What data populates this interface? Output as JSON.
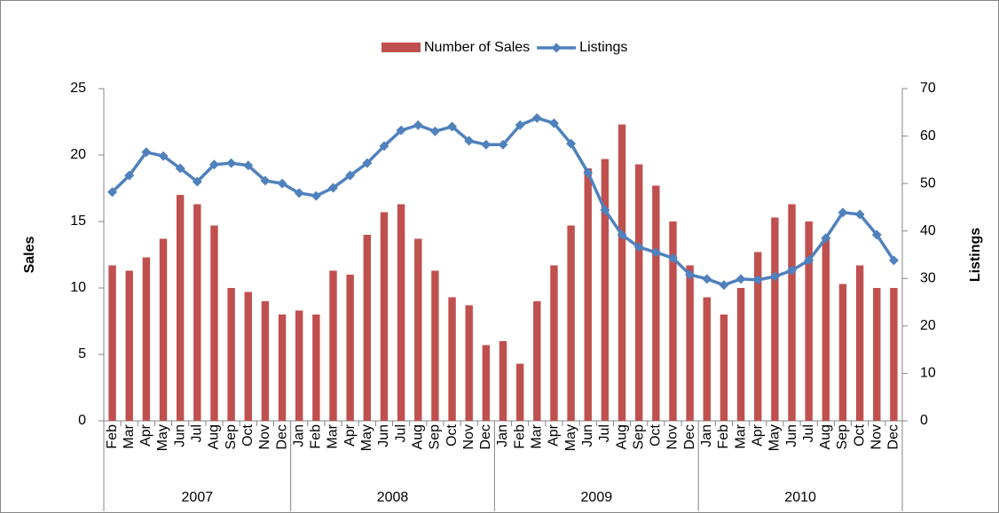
{
  "chart_data": {
    "type": "bar-line",
    "groups": [
      {
        "label": "2007",
        "categories": [
          "Feb",
          "Mar",
          "Apr",
          "May",
          "Jun",
          "Jul",
          "Aug",
          "Sep",
          "Oct",
          "Nov",
          "Dec"
        ]
      },
      {
        "label": "2008",
        "categories": [
          "Jan",
          "Feb",
          "Mar",
          "Apr",
          "May",
          "Jun",
          "Jul",
          "Aug",
          "Sep",
          "Oct",
          "Nov",
          "Dec"
        ]
      },
      {
        "label": "2009",
        "categories": [
          "Jan",
          "Feb",
          "Mar",
          "Apr",
          "May",
          "Jun",
          "Jul",
          "Aug",
          "Sep",
          "Oct",
          "Nov",
          "Dec"
        ]
      },
      {
        "label": "2010",
        "categories": [
          "Jan",
          "Feb",
          "Mar",
          "Apr",
          "May",
          "Jun",
          "Jul",
          "Aug",
          "Sep",
          "Oct",
          "Nov",
          "Dec"
        ]
      }
    ],
    "series": [
      {
        "name": "Number of Sales",
        "type": "bar",
        "color": "#c0504d",
        "axis": "y",
        "values": [
          11.7,
          11.3,
          12.3,
          13.7,
          17,
          16.3,
          14.7,
          10,
          9.7,
          9,
          8,
          8.3,
          8,
          11.3,
          11,
          14,
          15.7,
          16.3,
          13.7,
          11.3,
          9.3,
          8.7,
          5.7,
          6,
          4.3,
          9,
          11.7,
          14.7,
          19,
          19.7,
          22.3,
          19.3,
          17.7,
          15,
          11.7,
          9.3,
          8,
          10,
          12.7,
          15.3,
          16.3,
          15,
          13.7,
          10.3,
          11.7,
          10,
          10
        ]
      },
      {
        "name": "Listings",
        "type": "line",
        "color": "#4f81bd",
        "axis": "y2",
        "values": [
          48.2,
          51.7,
          56.6,
          55.8,
          53.2,
          50.4,
          54,
          54.3,
          53.8,
          50.6,
          50,
          48,
          47.4,
          49.1,
          51.7,
          54.3,
          57.9,
          61.2,
          62.3,
          61,
          62,
          59,
          58.2,
          58.2,
          62.3,
          63.8,
          62.7,
          58.4,
          52.3,
          44.4,
          39.2,
          36.6,
          35.5,
          34.3,
          30.8,
          29.9,
          28.6,
          29.9,
          29.7,
          30.4,
          31.7,
          33.8,
          38.5,
          43.9,
          43.5,
          39.2,
          33.8
        ]
      }
    ],
    "y_label": "Sales",
    "y2_label": "Listings",
    "ylim": [
      0,
      25
    ],
    "yticks": [
      0,
      5,
      10,
      15,
      20,
      25
    ],
    "y2lim": [
      0,
      70
    ],
    "y2ticks": [
      0,
      10,
      20,
      30,
      40,
      50,
      60,
      70
    ],
    "grid": false,
    "legend": "top"
  }
}
